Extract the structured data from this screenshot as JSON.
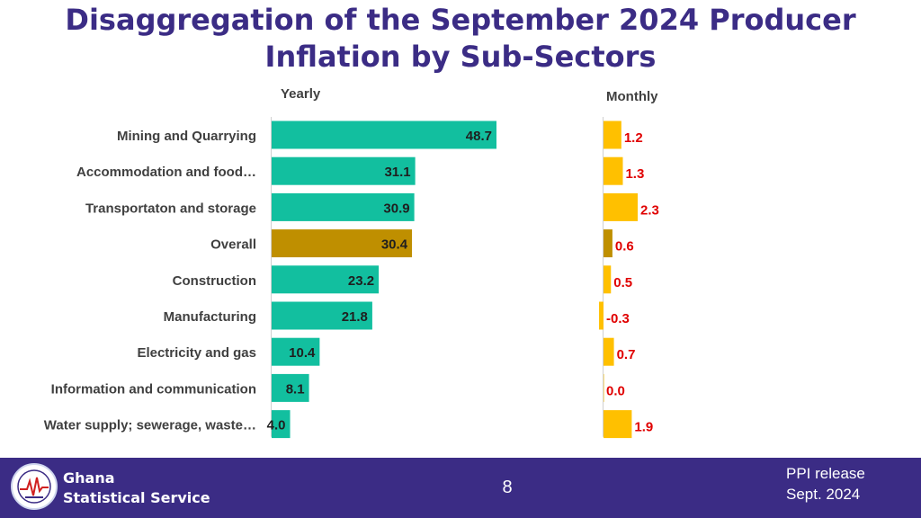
{
  "slide": {
    "title_line1": "Disaggregation of the September 2024 Producer",
    "title_line2": "Inflation by Sub-Sectors",
    "page_number": "8",
    "release_line1": "PPI release",
    "release_line2": "Sept. 2024",
    "org_line1": "Ghana",
    "org_line2": "Statistical Service"
  },
  "chart_data": {
    "type": "bar",
    "orientation": "horizontal",
    "categories": [
      "Mining and Quarrying",
      "Accommodation and food…",
      "Transportaton and storage",
      "Overall",
      "Construction",
      "Manufacturing",
      "Electricity and gas",
      "Information and communication",
      "Water supply; sewerage, waste…"
    ],
    "series": [
      {
        "name": "Yearly",
        "values": [
          48.7,
          31.1,
          30.9,
          30.4,
          23.2,
          21.8,
          10.4,
          8.1,
          4.0
        ]
      },
      {
        "name": "Monthly",
        "values": [
          1.2,
          1.3,
          2.3,
          0.6,
          0.5,
          -0.3,
          0.7,
          0.0,
          1.9
        ]
      }
    ],
    "highlight_category": "Overall",
    "colors": {
      "yearly": "#12bf9f",
      "monthly": "#ffc000",
      "overall": "#bf8f00",
      "monthly_label": "#e00000",
      "yearly_label": "#1f1f1f",
      "title": "#3b2c85",
      "footer": "#3b2c85"
    }
  }
}
